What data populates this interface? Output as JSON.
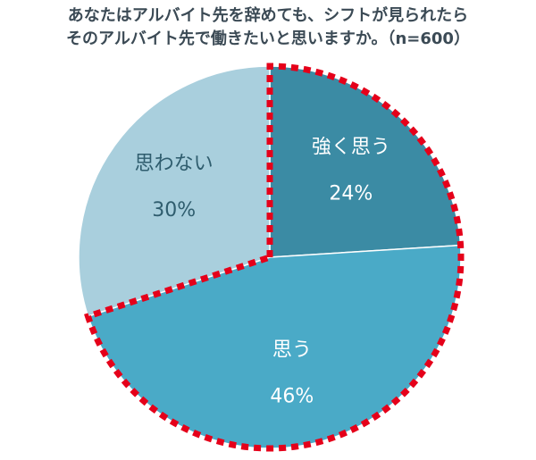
{
  "chart_data": {
    "type": "pie",
    "title": [
      "あなたはアルバイト先を辞めても、シフトが見られたら",
      "そのアルバイト先で働きたいと思いますか。（n=600）"
    ],
    "categories": [
      "強く思う",
      "思う",
      "思わない"
    ],
    "values": [
      24,
      46,
      30
    ],
    "value_labels": [
      "24%",
      "46%",
      "30%"
    ],
    "colors": [
      "#3b8ba4",
      "#4aaac7",
      "#a9cfdd"
    ],
    "label_colors": [
      "#ffffff",
      "#ffffff",
      "#2f5d6e"
    ],
    "outline": {
      "color": "#e5001a",
      "slices": [
        0,
        1
      ]
    }
  }
}
